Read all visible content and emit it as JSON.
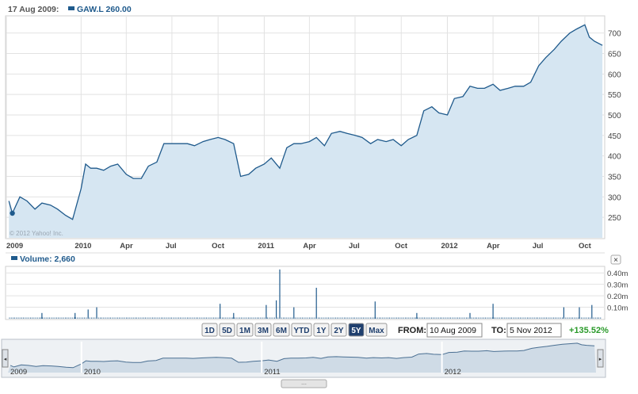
{
  "header": {
    "date": "17 Aug 2009:",
    "symbol_line": "GAW.L 260.00",
    "watermark": "© 2012 Yahoo! Inc."
  },
  "colors": {
    "line": "#1f5a8c",
    "fill": "#d6e6f2",
    "grid": "#e2e2e2",
    "green": "#2a9a2a"
  },
  "volume_header": {
    "label": "Volume: 2,660"
  },
  "controls": {
    "ranges": [
      "1D",
      "5D",
      "1M",
      "3M",
      "6M",
      "YTD",
      "1Y",
      "2Y",
      "5Y",
      "Max"
    ],
    "selected": "5Y",
    "from_label": "FROM:",
    "from_value": "10 Aug 2009",
    "to_label": "TO:",
    "to_value": "5 Nov 2012",
    "change": "+135.52%"
  },
  "navigator": {
    "years": [
      "2009",
      "2010",
      "2011",
      "2012"
    ]
  },
  "chart_data": [
    {
      "type": "area",
      "title": "GAW.L",
      "x_tick_labels": [
        "2009",
        "2010",
        "Apr",
        "Jul",
        "Oct",
        "2011",
        "Apr",
        "Jul",
        "Oct",
        "2012",
        "Apr",
        "Jul",
        "Oct"
      ],
      "y_ticks": [
        250,
        300,
        350,
        400,
        450,
        500,
        550,
        600,
        650,
        700
      ],
      "ylim": [
        200,
        740
      ],
      "grid": true,
      "highlight_point": {
        "x": "17 Aug 2009",
        "y": 260
      },
      "series": [
        {
          "x": [
            "2009-08-10",
            "2009-08-17",
            "2009-09-01",
            "2009-09-15",
            "2009-10-01",
            "2009-10-15",
            "2009-11-01",
            "2009-11-15",
            "2009-12-01",
            "2009-12-15",
            "2010-01-01",
            "2010-01-10",
            "2010-01-20",
            "2010-02-01",
            "2010-02-15",
            "2010-03-01",
            "2010-03-15",
            "2010-04-01",
            "2010-04-15",
            "2010-05-01",
            "2010-05-15",
            "2010-06-01",
            "2010-06-15",
            "2010-07-01",
            "2010-07-15",
            "2010-08-01",
            "2010-08-15",
            "2010-09-01",
            "2010-09-15",
            "2010-10-01",
            "2010-10-15",
            "2010-11-01",
            "2010-11-15",
            "2010-12-01",
            "2010-12-15",
            "2011-01-01",
            "2011-01-15",
            "2011-02-01",
            "2011-02-15",
            "2011-03-01",
            "2011-03-15",
            "2011-04-01",
            "2011-04-15",
            "2011-05-01",
            "2011-05-15",
            "2011-06-01",
            "2011-06-15",
            "2011-07-01",
            "2011-07-15",
            "2011-08-01",
            "2011-08-15",
            "2011-09-01",
            "2011-09-15",
            "2011-10-01",
            "2011-10-15",
            "2011-11-01",
            "2011-11-15",
            "2011-12-01",
            "2011-12-15",
            "2012-01-01",
            "2012-01-15",
            "2012-02-01",
            "2012-02-15",
            "2012-03-01",
            "2012-03-15",
            "2012-04-01",
            "2012-04-15",
            "2012-05-01",
            "2012-05-15",
            "2012-06-01",
            "2012-06-15",
            "2012-07-01",
            "2012-07-15",
            "2012-08-01",
            "2012-08-15",
            "2012-09-01",
            "2012-09-15",
            "2012-10-01",
            "2012-10-10",
            "2012-10-20",
            "2012-11-05"
          ],
          "values": [
            290,
            260,
            300,
            290,
            270,
            285,
            280,
            270,
            255,
            245,
            320,
            380,
            370,
            370,
            365,
            375,
            380,
            355,
            345,
            345,
            375,
            385,
            430,
            430,
            430,
            430,
            425,
            435,
            440,
            445,
            440,
            430,
            350,
            355,
            370,
            380,
            395,
            370,
            420,
            430,
            430,
            435,
            445,
            425,
            455,
            460,
            455,
            450,
            445,
            430,
            440,
            435,
            440,
            425,
            440,
            450,
            510,
            520,
            505,
            500,
            540,
            545,
            570,
            565,
            565,
            575,
            560,
            565,
            570,
            570,
            580,
            620,
            640,
            660,
            680,
            700,
            710,
            720,
            690,
            680,
            670
          ]
        }
      ]
    },
    {
      "type": "bar",
      "title": "Volume",
      "y_ticks": [
        "0.10m",
        "0.20m",
        "0.30m",
        "0.40m"
      ],
      "ylim": [
        0,
        0.45
      ],
      "spikes": [
        {
          "x": "2009-10-15",
          "value": 0.05
        },
        {
          "x": "2009-12-20",
          "value": 0.05
        },
        {
          "x": "2010-01-15",
          "value": 0.08
        },
        {
          "x": "2010-02-01",
          "value": 0.1
        },
        {
          "x": "2010-10-05",
          "value": 0.13
        },
        {
          "x": "2010-11-01",
          "value": 0.05
        },
        {
          "x": "2011-01-05",
          "value": 0.12
        },
        {
          "x": "2011-01-25",
          "value": 0.16
        },
        {
          "x": "2011-02-01",
          "value": 0.43
        },
        {
          "x": "2011-03-01",
          "value": 0.1
        },
        {
          "x": "2011-04-15",
          "value": 0.27
        },
        {
          "x": "2011-08-10",
          "value": 0.15
        },
        {
          "x": "2011-11-01",
          "value": 0.05
        },
        {
          "x": "2012-02-15",
          "value": 0.05
        },
        {
          "x": "2012-04-01",
          "value": 0.13
        },
        {
          "x": "2012-08-20",
          "value": 0.1
        },
        {
          "x": "2012-09-20",
          "value": 0.1
        },
        {
          "x": "2012-10-15",
          "value": 0.12
        }
      ]
    }
  ]
}
